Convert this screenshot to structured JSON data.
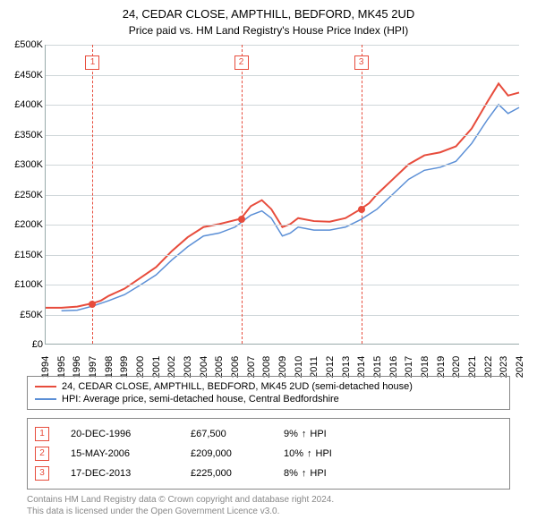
{
  "title": "24, CEDAR CLOSE, AMPTHILL, BEDFORD, MK45 2UD",
  "subtitle": "Price paid vs. HM Land Registry's House Price Index (HPI)",
  "chart": {
    "type": "line",
    "background_color": "#ffffff",
    "grid_color": "#cfd6d9",
    "axis_color": "#99aaaa",
    "label_fontsize": 11,
    "y": {
      "min": 0,
      "max": 500000,
      "tick_step": 50000,
      "ticks": [
        "£0",
        "£50K",
        "£100K",
        "£150K",
        "£200K",
        "£250K",
        "£300K",
        "£350K",
        "£400K",
        "£450K",
        "£500K"
      ]
    },
    "x": {
      "min": 1994,
      "max": 2024,
      "ticks": [
        "1994",
        "1995",
        "1996",
        "1997",
        "1998",
        "1999",
        "2000",
        "2001",
        "2002",
        "2003",
        "2004",
        "2005",
        "2006",
        "2007",
        "2008",
        "2009",
        "2010",
        "2011",
        "2012",
        "2013",
        "2014",
        "2015",
        "2016",
        "2017",
        "2018",
        "2019",
        "2020",
        "2021",
        "2022",
        "2023",
        "2024"
      ]
    },
    "series": [
      {
        "name": "24, CEDAR CLOSE, AMPTHILL, BEDFORD, MK45 2UD (semi-detached house)",
        "color": "#e74c3c",
        "width": 2,
        "points": [
          [
            1994,
            60000
          ],
          [
            1995,
            60000
          ],
          [
            1996,
            62000
          ],
          [
            1996.97,
            67500
          ],
          [
            1997.5,
            72000
          ],
          [
            1998,
            80000
          ],
          [
            1999,
            92000
          ],
          [
            2000,
            110000
          ],
          [
            2001,
            128000
          ],
          [
            2002,
            155000
          ],
          [
            2003,
            178000
          ],
          [
            2004,
            195000
          ],
          [
            2005,
            200000
          ],
          [
            2006.37,
            209000
          ],
          [
            2007,
            230000
          ],
          [
            2007.7,
            240000
          ],
          [
            2008.3,
            225000
          ],
          [
            2009,
            195000
          ],
          [
            2009.5,
            200000
          ],
          [
            2010,
            210000
          ],
          [
            2011,
            205000
          ],
          [
            2012,
            204000
          ],
          [
            2013,
            210000
          ],
          [
            2013.96,
            225000
          ],
          [
            2014.5,
            235000
          ],
          [
            2015,
            250000
          ],
          [
            2016,
            275000
          ],
          [
            2017,
            300000
          ],
          [
            2018,
            315000
          ],
          [
            2019,
            320000
          ],
          [
            2020,
            330000
          ],
          [
            2021,
            360000
          ],
          [
            2022,
            405000
          ],
          [
            2022.7,
            435000
          ],
          [
            2023.3,
            415000
          ],
          [
            2024,
            420000
          ]
        ]
      },
      {
        "name": "HPI: Average price, semi-detached house, Central Bedfordshire",
        "color": "#5b8fd6",
        "width": 1.5,
        "points": [
          [
            1995,
            55000
          ],
          [
            1996,
            56000
          ],
          [
            1997,
            63000
          ],
          [
            1998,
            72000
          ],
          [
            1999,
            82000
          ],
          [
            2000,
            98000
          ],
          [
            2001,
            115000
          ],
          [
            2002,
            140000
          ],
          [
            2003,
            162000
          ],
          [
            2004,
            180000
          ],
          [
            2005,
            185000
          ],
          [
            2006,
            195000
          ],
          [
            2007,
            215000
          ],
          [
            2007.7,
            222000
          ],
          [
            2008.3,
            210000
          ],
          [
            2009,
            180000
          ],
          [
            2009.5,
            185000
          ],
          [
            2010,
            195000
          ],
          [
            2011,
            190000
          ],
          [
            2012,
            190000
          ],
          [
            2013,
            195000
          ],
          [
            2014,
            208000
          ],
          [
            2015,
            225000
          ],
          [
            2016,
            250000
          ],
          [
            2017,
            275000
          ],
          [
            2018,
            290000
          ],
          [
            2019,
            295000
          ],
          [
            2020,
            305000
          ],
          [
            2021,
            335000
          ],
          [
            2022,
            375000
          ],
          [
            2022.7,
            400000
          ],
          [
            2023.3,
            385000
          ],
          [
            2024,
            395000
          ]
        ]
      }
    ],
    "markers": [
      {
        "n": "1",
        "year": 1996.97,
        "value": 67500
      },
      {
        "n": "2",
        "year": 2006.37,
        "value": 209000
      },
      {
        "n": "3",
        "year": 2013.96,
        "value": 225000
      }
    ]
  },
  "legend": {
    "items": [
      {
        "color": "#e74c3c",
        "label": "24, CEDAR CLOSE, AMPTHILL, BEDFORD, MK45 2UD (semi-detached house)"
      },
      {
        "color": "#5b8fd6",
        "label": "HPI: Average price, semi-detached house, Central Bedfordshire"
      }
    ]
  },
  "events": [
    {
      "n": "1",
      "date": "20-DEC-1996",
      "price": "£67,500",
      "hpi": "9%",
      "arrow": "↑",
      "suffix": "HPI"
    },
    {
      "n": "2",
      "date": "15-MAY-2006",
      "price": "£209,000",
      "hpi": "10%",
      "arrow": "↑",
      "suffix": "HPI"
    },
    {
      "n": "3",
      "date": "17-DEC-2013",
      "price": "£225,000",
      "hpi": "8%",
      "arrow": "↑",
      "suffix": "HPI"
    }
  ],
  "attribution": {
    "line1": "Contains HM Land Registry data © Crown copyright and database right 2024.",
    "line2": "This data is licensed under the Open Government Licence v3.0."
  },
  "colors": {
    "marker_border": "#e74c3c",
    "attribution_text": "#888888"
  }
}
